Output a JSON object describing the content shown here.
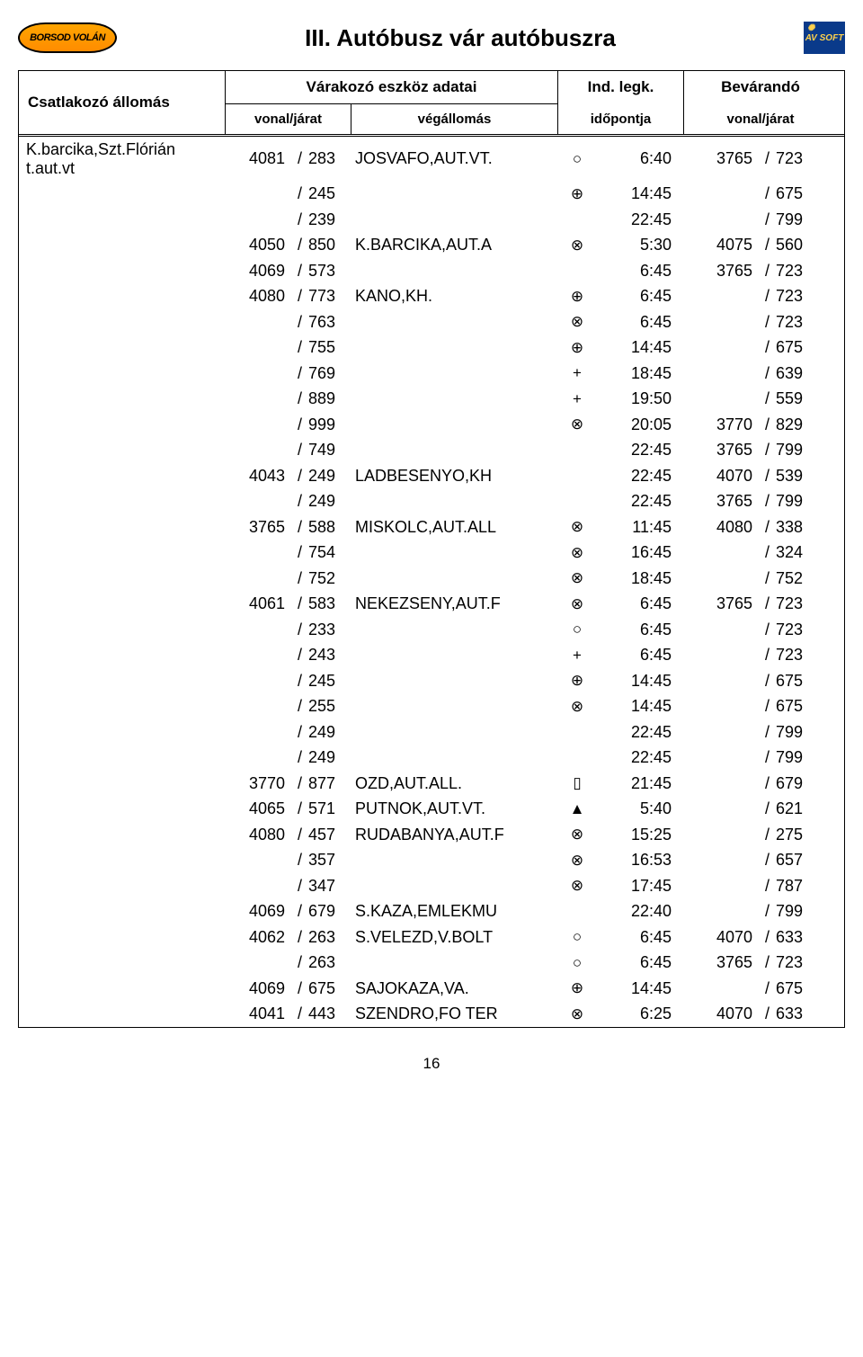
{
  "logo_text": "BORSOD VOLÁN",
  "badge_text": "AV SOFT",
  "title": "III. Autóbusz vár autóbuszra",
  "page_number": "16",
  "columns": {
    "station": "Csatlakozó állomás",
    "vehicle_group": "Várakozó eszköz adatai",
    "line": "vonal/járat",
    "endstop": "végállomás",
    "departure_top": "Ind. legk.",
    "departure_bottom": "időpontja",
    "wait_top": "Bevárandó",
    "wait_bottom": "vonal/járat"
  },
  "station_label": "K.barcika,Szt.Flórián t.aut.vt",
  "rows": [
    {
      "la": "4081",
      "lb": "283",
      "dest": "JOSVAFO,AUT.VT.",
      "sym": "○",
      "time": "6:40",
      "wa": "3765",
      "wb": "723"
    },
    {
      "la": "",
      "lb": "245",
      "dest": "",
      "sym": "⊕",
      "time": "14:45",
      "wa": "",
      "wb": "675"
    },
    {
      "la": "",
      "lb": "239",
      "dest": "",
      "sym": "",
      "time": "22:45",
      "wa": "",
      "wb": "799"
    },
    {
      "la": "4050",
      "lb": "850",
      "dest": "K.BARCIKA,AUT.A",
      "sym": "⊗",
      "time": "5:30",
      "wa": "4075",
      "wb": "560"
    },
    {
      "la": "4069",
      "lb": "573",
      "dest": "",
      "sym": "",
      "time": "6:45",
      "wa": "3765",
      "wb": "723"
    },
    {
      "la": "4080",
      "lb": "773",
      "dest": "KANO,KH.",
      "sym": "⊕",
      "time": "6:45",
      "wa": "",
      "wb": "723"
    },
    {
      "la": "",
      "lb": "763",
      "dest": "",
      "sym": "⊗",
      "time": "6:45",
      "wa": "",
      "wb": "723"
    },
    {
      "la": "",
      "lb": "755",
      "dest": "",
      "sym": "⊕",
      "time": "14:45",
      "wa": "",
      "wb": "675"
    },
    {
      "la": "",
      "lb": "769",
      "dest": "",
      "sym": "+",
      "time": "18:45",
      "wa": "",
      "wb": "639"
    },
    {
      "la": "",
      "lb": "889",
      "dest": "",
      "sym": "+",
      "time": "19:50",
      "wa": "",
      "wb": "559"
    },
    {
      "la": "",
      "lb": "999",
      "dest": "",
      "sym": "⊗",
      "time": "20:05",
      "wa": "3770",
      "wb": "829"
    },
    {
      "la": "",
      "lb": "749",
      "dest": "",
      "sym": "",
      "time": "22:45",
      "wa": "3765",
      "wb": "799"
    },
    {
      "la": "4043",
      "lb": "249",
      "dest": "LADBESENYO,KH",
      "sym": "",
      "time": "22:45",
      "wa": "4070",
      "wb": "539"
    },
    {
      "la": "",
      "lb": "249",
      "dest": "",
      "sym": "",
      "time": "22:45",
      "wa": "3765",
      "wb": "799"
    },
    {
      "la": "3765",
      "lb": "588",
      "dest": "MISKOLC,AUT.ALL",
      "sym": "⊗",
      "time": "11:45",
      "wa": "4080",
      "wb": "338"
    },
    {
      "la": "",
      "lb": "754",
      "dest": "",
      "sym": "⊗",
      "time": "16:45",
      "wa": "",
      "wb": "324"
    },
    {
      "la": "",
      "lb": "752",
      "dest": "",
      "sym": "⊗",
      "time": "18:45",
      "wa": "",
      "wb": "752"
    },
    {
      "la": "4061",
      "lb": "583",
      "dest": "NEKEZSENY,AUT.F",
      "sym": "⊗",
      "time": "6:45",
      "wa": "3765",
      "wb": "723"
    },
    {
      "la": "",
      "lb": "233",
      "dest": "",
      "sym": "○",
      "time": "6:45",
      "wa": "",
      "wb": "723"
    },
    {
      "la": "",
      "lb": "243",
      "dest": "",
      "sym": "+",
      "time": "6:45",
      "wa": "",
      "wb": "723"
    },
    {
      "la": "",
      "lb": "245",
      "dest": "",
      "sym": "⊕",
      "time": "14:45",
      "wa": "",
      "wb": "675"
    },
    {
      "la": "",
      "lb": "255",
      "dest": "",
      "sym": "⊗",
      "time": "14:45",
      "wa": "",
      "wb": "675"
    },
    {
      "la": "",
      "lb": "249",
      "dest": "",
      "sym": "",
      "time": "22:45",
      "wa": "",
      "wb": "799"
    },
    {
      "la": "",
      "lb": "249",
      "dest": "",
      "sym": "",
      "time": "22:45",
      "wa": "",
      "wb": "799"
    },
    {
      "la": "3770",
      "lb": "877",
      "dest": "OZD,AUT.ALL.",
      "sym": "▯",
      "time": "21:45",
      "wa": "",
      "wb": "679"
    },
    {
      "la": "4065",
      "lb": "571",
      "dest": "PUTNOK,AUT.VT.",
      "sym": "▲",
      "time": "5:40",
      "wa": "",
      "wb": "621"
    },
    {
      "la": "4080",
      "lb": "457",
      "dest": "RUDABANYA,AUT.F",
      "sym": "⊗",
      "time": "15:25",
      "wa": "",
      "wb": "275"
    },
    {
      "la": "",
      "lb": "357",
      "dest": "",
      "sym": "⊗",
      "time": "16:53",
      "wa": "",
      "wb": "657"
    },
    {
      "la": "",
      "lb": "347",
      "dest": "",
      "sym": "⊗",
      "time": "17:45",
      "wa": "",
      "wb": "787"
    },
    {
      "la": "4069",
      "lb": "679",
      "dest": "S.KAZA,EMLEKMU",
      "sym": "",
      "time": "22:40",
      "wa": "",
      "wb": "799"
    },
    {
      "la": "4062",
      "lb": "263",
      "dest": "S.VELEZD,V.BOLT",
      "sym": "○",
      "time": "6:45",
      "wa": "4070",
      "wb": "633"
    },
    {
      "la": "",
      "lb": "263",
      "dest": "",
      "sym": "○",
      "time": "6:45",
      "wa": "3765",
      "wb": "723"
    },
    {
      "la": "4069",
      "lb": "675",
      "dest": "SAJOKAZA,VA.",
      "sym": "⊕",
      "time": "14:45",
      "wa": "",
      "wb": "675"
    },
    {
      "la": "4041",
      "lb": "443",
      "dest": "SZENDRO,FO TER",
      "sym": "⊗",
      "time": "6:25",
      "wa": "4070",
      "wb": "633"
    }
  ]
}
